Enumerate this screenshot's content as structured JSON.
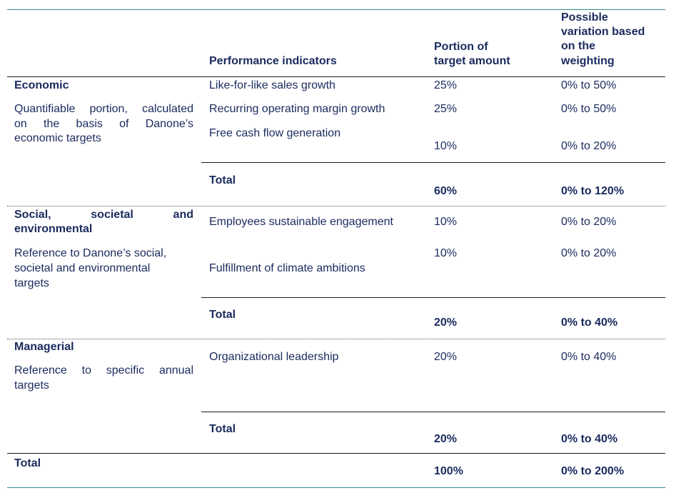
{
  "headers": {
    "indicators": "Performance indicators",
    "portion_l1": "Portion of",
    "portion_l2": "target amount",
    "variation_l1": "Possible",
    "variation_l2": "variation based",
    "variation_l3": "on the",
    "variation_l4": "weighting"
  },
  "economic": {
    "title": "Economic",
    "desc_l1": "Quantifiable portion, calculated",
    "desc_l2": "on the basis of Danone’s",
    "desc_l3": "economic targets",
    "rows": [
      {
        "indicator": "Like-for-like sales growth",
        "portion": "25%",
        "variation": "0% to 50%"
      },
      {
        "indicator": "Recurring operating margin growth",
        "portion": "25%",
        "variation": "0% to 50%"
      },
      {
        "indicator": "Free cash flow generation",
        "portion": "10%",
        "variation": "0% to 20%"
      }
    ],
    "total_label": "Total",
    "total_portion": "60%",
    "total_variation": "0% to 120%"
  },
  "social": {
    "title_l1": "Social, societal and",
    "title_l2": "environmental",
    "desc_l1": "Reference to Danone’s social,",
    "desc_l2": "societal and environmental",
    "desc_l3": "targets",
    "rows": [
      {
        "indicator": "Employees sustainable engagement",
        "portion": "10%",
        "variation": "0% to 20%"
      },
      {
        "indicator": "Fulfillment of climate ambitions",
        "portion": "10%",
        "variation": "0% to 20%"
      }
    ],
    "total_label": "Total",
    "total_portion": "20%",
    "total_variation": "0% to 40%"
  },
  "managerial": {
    "title": "Managerial",
    "desc_l1": "Reference to specific annual",
    "desc_l2": "targets",
    "rows": [
      {
        "indicator": "Organizational leadership",
        "portion": "20%",
        "variation": "0% to 40%"
      }
    ],
    "total_label": "Total",
    "total_portion": "20%",
    "total_variation": "0% to 40%"
  },
  "grand_total": {
    "label": "Total",
    "portion": "100%",
    "variation": "0% to 200%"
  }
}
